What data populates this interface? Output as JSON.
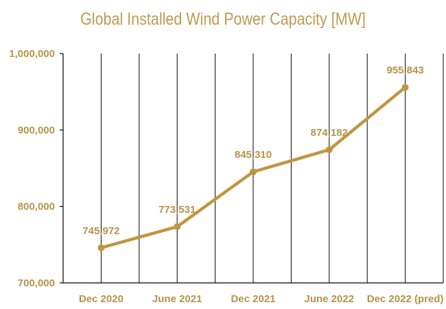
{
  "chart_data": {
    "type": "line",
    "title": "Global Installed Wind Power Capacity [MW]",
    "xlabel": "",
    "ylabel": "",
    "categories": [
      "Dec 2020",
      "June 2021",
      "Dec 2021",
      "June 2022",
      "Dec 2022 (pred)"
    ],
    "values": [
      745972,
      773531,
      845310,
      874182,
      955843
    ],
    "value_labels": [
      "745,972",
      "773,531",
      "845,310",
      "874,182",
      "955,843"
    ],
    "ylim": [
      700000,
      1000000
    ],
    "yticks": [
      700000,
      800000,
      900000,
      1000000
    ],
    "ytick_labels": [
      "700,000",
      "800,000",
      "900,000",
      "1,000,000"
    ],
    "grid": "vertical",
    "colors": {
      "line": "#bf9642",
      "text": "#b89249",
      "grid": "#000000"
    }
  }
}
